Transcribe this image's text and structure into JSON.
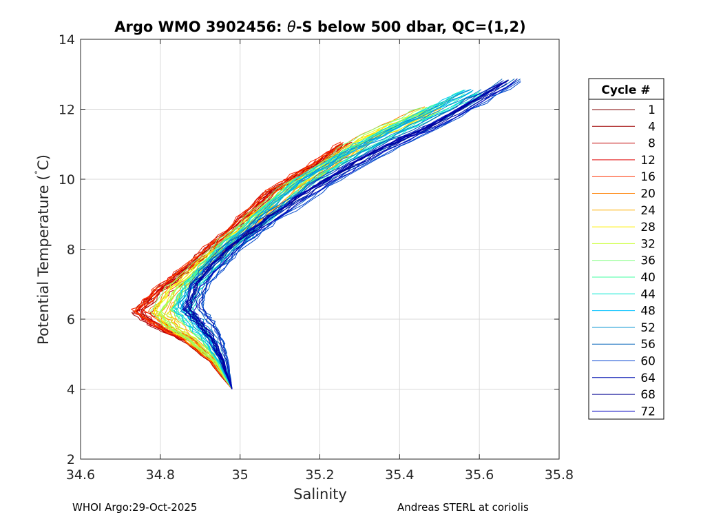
{
  "chart_data": {
    "type": "line",
    "title_prefix": "Argo WMO 3902456: ",
    "title_symbol": "θ",
    "title_suffix": "-S below 500 dbar,  QC=(1,2)",
    "xlabel": "Salinity",
    "ylabel_prefix": "Potential Temperature (",
    "ylabel_deg": "˚",
    "ylabel_suffix": "C)",
    "xlim": [
      34.6,
      35.8
    ],
    "ylim": [
      2,
      14
    ],
    "xticks": [
      34.6,
      34.8,
      35.0,
      35.2,
      35.4,
      35.6,
      35.8
    ],
    "xtick_labels": [
      "34.6",
      "34.8",
      "35",
      "35.2",
      "35.4",
      "35.6",
      "35.8"
    ],
    "yticks": [
      2,
      4,
      6,
      8,
      10,
      12,
      14
    ],
    "ytick_labels": [
      "2",
      "4",
      "6",
      "8",
      "10",
      "12",
      "14"
    ],
    "grid": true,
    "legend": {
      "title": "Cycle #",
      "placement": "right",
      "entries": [
        {
          "label": "1",
          "color": "#800000"
        },
        {
          "label": "4",
          "color": "#9e0000"
        },
        {
          "label": "8",
          "color": "#c00000"
        },
        {
          "label": "12",
          "color": "#e00000"
        },
        {
          "label": "16",
          "color": "#ff3000"
        },
        {
          "label": "20",
          "color": "#ff8000"
        },
        {
          "label": "24",
          "color": "#ffb000"
        },
        {
          "label": "28",
          "color": "#ffef00"
        },
        {
          "label": "32",
          "color": "#c8ff30"
        },
        {
          "label": "36",
          "color": "#80ff80"
        },
        {
          "label": "40",
          "color": "#40ffa0"
        },
        {
          "label": "44",
          "color": "#00e8d0"
        },
        {
          "label": "48",
          "color": "#00c0ff"
        },
        {
          "label": "52",
          "color": "#0090d0"
        },
        {
          "label": "56",
          "color": "#0060b8"
        },
        {
          "label": "60",
          "color": "#0040d0"
        },
        {
          "label": "64",
          "color": "#0010b0"
        },
        {
          "label": "68",
          "color": "#000090"
        },
        {
          "label": "72",
          "color": "#0000c0"
        }
      ]
    },
    "series_model": {
      "description": "approximate theta-S profile per cycle (salinity, potential temperature)",
      "groups": [
        {
          "cycles": [
            1,
            2,
            3,
            4,
            5,
            6,
            7,
            8,
            9,
            10,
            11,
            12,
            13,
            14,
            15,
            16,
            17,
            18,
            19
          ],
          "points": [
            [
              34.98,
              4.0
            ],
            [
              34.93,
              4.8
            ],
            [
              34.87,
              5.4
            ],
            [
              34.8,
              5.8
            ],
            [
              34.75,
              6.2
            ],
            [
              34.8,
              6.8
            ],
            [
              34.88,
              7.5
            ],
            [
              34.98,
              8.5
            ],
            [
              35.08,
              9.6
            ],
            [
              35.18,
              10.3
            ],
            [
              35.27,
              11.0
            ]
          ]
        },
        {
          "cycles": [
            20,
            21,
            22,
            23,
            24,
            25,
            26,
            27,
            28,
            29,
            30,
            31,
            32,
            33,
            34,
            35,
            36
          ],
          "points": [
            [
              34.98,
              4.0
            ],
            [
              34.94,
              4.8
            ],
            [
              34.88,
              5.4
            ],
            [
              34.83,
              5.8
            ],
            [
              34.8,
              6.2
            ],
            [
              34.84,
              6.9
            ],
            [
              34.92,
              7.7
            ],
            [
              35.02,
              8.7
            ],
            [
              35.12,
              9.7
            ],
            [
              35.22,
              10.4
            ],
            [
              35.32,
              11.2
            ],
            [
              35.48,
              12.0
            ]
          ]
        },
        {
          "cycles": [
            37,
            38,
            39,
            40,
            41,
            42,
            43,
            44,
            45,
            46,
            47,
            48,
            49,
            50,
            51,
            52,
            53,
            54
          ],
          "points": [
            [
              34.98,
              4.0
            ],
            [
              34.95,
              4.8
            ],
            [
              34.92,
              5.4
            ],
            [
              34.88,
              5.9
            ],
            [
              34.85,
              6.3
            ],
            [
              34.88,
              7.0
            ],
            [
              34.95,
              7.9
            ],
            [
              35.05,
              8.9
            ],
            [
              35.15,
              9.9
            ],
            [
              35.28,
              10.8
            ],
            [
              35.42,
              11.6
            ],
            [
              35.58,
              12.5
            ]
          ]
        },
        {
          "cycles": [
            55,
            56,
            57,
            58,
            59,
            60,
            61,
            62,
            63,
            64,
            65,
            66,
            67,
            68,
            69,
            70,
            71,
            72
          ],
          "points": [
            [
              34.98,
              4.0
            ],
            [
              34.96,
              4.8
            ],
            [
              34.94,
              5.4
            ],
            [
              34.91,
              5.9
            ],
            [
              34.88,
              6.3
            ],
            [
              34.9,
              7.0
            ],
            [
              34.97,
              7.9
            ],
            [
              35.07,
              8.8
            ],
            [
              35.2,
              9.8
            ],
            [
              35.35,
              10.8
            ],
            [
              35.5,
              11.6
            ],
            [
              35.68,
              12.8
            ]
          ]
        }
      ]
    }
  },
  "footer": {
    "left": "WHOI Argo:29-Oct-2025",
    "right": "Andreas STERL at coriolis"
  }
}
